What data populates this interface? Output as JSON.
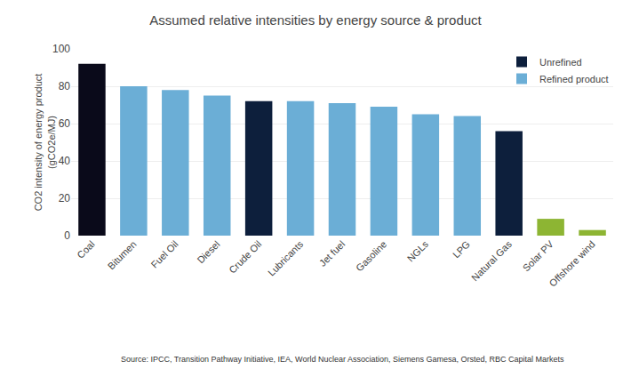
{
  "chart_data": {
    "type": "bar",
    "title": "Assumed relative intensities by energy source & product",
    "ylabel": "CO2 intensity of energy product\n(gCO2e/MJ)",
    "categories": [
      "Coal",
      "Bitumen",
      "Fuel Oil",
      "Diesel",
      "Crude Oil",
      "Lubricants",
      "Jet fuel",
      "Gasoline",
      "NGLs",
      "LPG",
      "Natural Gas",
      "Solar PV",
      "Offshore wind"
    ],
    "series": [
      {
        "color": "#0a0a1a",
        "values": [
          92,
          null,
          null,
          null,
          null,
          null,
          null,
          null,
          null,
          null,
          null,
          null,
          null
        ]
      },
      {
        "name": "Unrefined",
        "color": "#0d1f3c",
        "values": [
          null,
          null,
          null,
          null,
          72,
          null,
          null,
          null,
          null,
          null,
          56,
          null,
          null
        ]
      },
      {
        "name": "Refined product",
        "color": "#6baed6",
        "values": [
          null,
          80,
          78,
          75,
          null,
          72,
          71,
          69,
          65,
          64,
          null,
          null,
          null
        ]
      },
      {
        "color": "#8db533",
        "values": [
          null,
          null,
          null,
          null,
          null,
          null,
          null,
          null,
          null,
          null,
          null,
          9,
          3
        ]
      }
    ],
    "ylim": [
      0,
      100
    ],
    "yticks": [
      0,
      20,
      40,
      60,
      80,
      100
    ],
    "grid": true,
    "legend": "upper right",
    "annotations": [
      "Source: IPCC, Transition Pathway Initiative, IEA, World Nuclear Association, Siemens Gamesa, Orsted, RBC Capital Markets"
    ]
  }
}
